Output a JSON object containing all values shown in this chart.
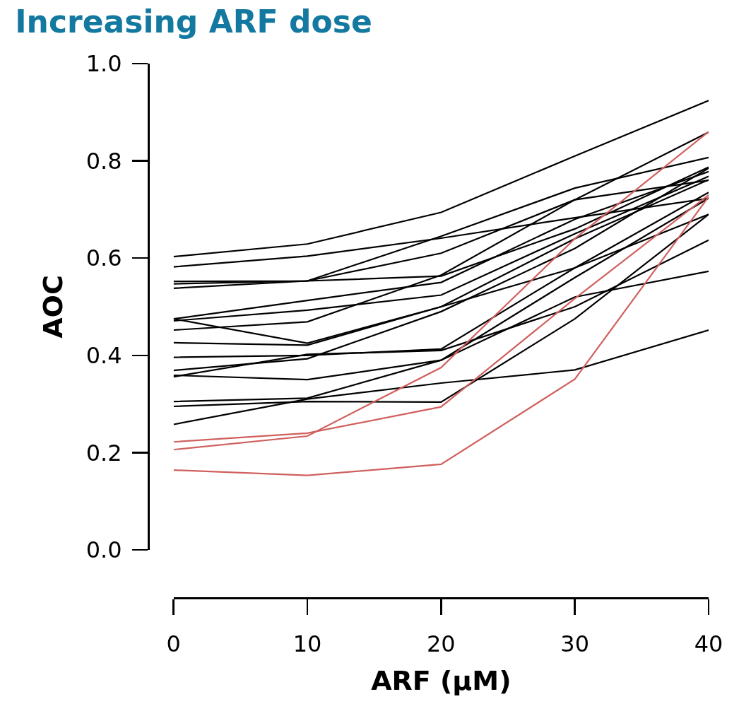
{
  "chart_data": {
    "type": "line",
    "title": "Increasing ARF dose",
    "xlabel": "ARF (μM)",
    "ylabel": "AOC",
    "x": [
      0,
      10,
      20,
      30,
      40
    ],
    "xlim": [
      0,
      40
    ],
    "xticks": [
      0,
      10,
      20,
      30,
      40
    ],
    "ylim": [
      0,
      1
    ],
    "yticks": [
      {
        "value": 0,
        "label": "0.0"
      },
      0.2,
      0.4,
      0.6,
      0.8,
      {
        "value": 1,
        "label": "1.0"
      }
    ],
    "grid": false,
    "marker": "none",
    "line_style": "solid",
    "series": [
      {
        "color": "#000000",
        "values": [
          0.603,
          0.629,
          0.694,
          0.81,
          0.924
        ]
      },
      {
        "color": "#000000",
        "values": [
          0.582,
          0.604,
          0.641,
          0.683,
          0.723
        ]
      },
      {
        "color": "#000000",
        "values": [
          0.552,
          0.553,
          0.645,
          0.744,
          0.807
        ]
      },
      {
        "color": "#000000",
        "values": [
          0.547,
          0.553,
          0.61,
          0.72,
          0.859
        ]
      },
      {
        "color": "#000000",
        "values": [
          0.538,
          0.553,
          0.563,
          0.66,
          0.787
        ]
      },
      {
        "color": "#000000",
        "values": [
          0.475,
          0.513,
          0.55,
          0.68,
          0.778
        ]
      },
      {
        "color": "#000000",
        "values": [
          0.471,
          0.493,
          0.524,
          0.65,
          0.768
        ]
      },
      {
        "color": "#000000",
        "values": [
          0.475,
          0.425,
          0.5,
          0.64,
          0.761
        ]
      },
      {
        "color": "#000000",
        "values": [
          0.452,
          0.469,
          0.565,
          0.72,
          0.76
        ]
      },
      {
        "color": "#000000",
        "values": [
          0.426,
          0.421,
          0.5,
          0.58,
          0.69
        ]
      },
      {
        "color": "#000000",
        "values": [
          0.396,
          0.4,
          0.413,
          0.58,
          0.735
        ]
      },
      {
        "color": "#000000",
        "values": [
          0.369,
          0.393,
          0.49,
          0.62,
          0.785
        ]
      },
      {
        "color": "#000000",
        "values": [
          0.359,
          0.35,
          0.39,
          0.56,
          0.723
        ]
      },
      {
        "color": "#000000",
        "values": [
          0.356,
          0.402,
          0.41,
          0.5,
          0.637
        ]
      },
      {
        "color": "#000000",
        "values": [
          0.305,
          0.312,
          0.39,
          0.52,
          0.573
        ]
      },
      {
        "color": "#000000",
        "values": [
          0.295,
          0.305,
          0.304,
          0.475,
          0.69
        ]
      },
      {
        "color": "#000000",
        "values": [
          0.258,
          0.31,
          0.343,
          0.37,
          0.452
        ]
      },
      {
        "color": "#d0605e",
        "values": [
          0.222,
          0.24,
          0.294,
          0.517,
          0.73
        ]
      },
      {
        "color": "#d0605e",
        "values": [
          0.206,
          0.234,
          0.375,
          0.64,
          0.86
        ]
      },
      {
        "color": "#d0605e",
        "values": [
          0.164,
          0.153,
          0.176,
          0.351,
          0.726
        ]
      }
    ]
  }
}
